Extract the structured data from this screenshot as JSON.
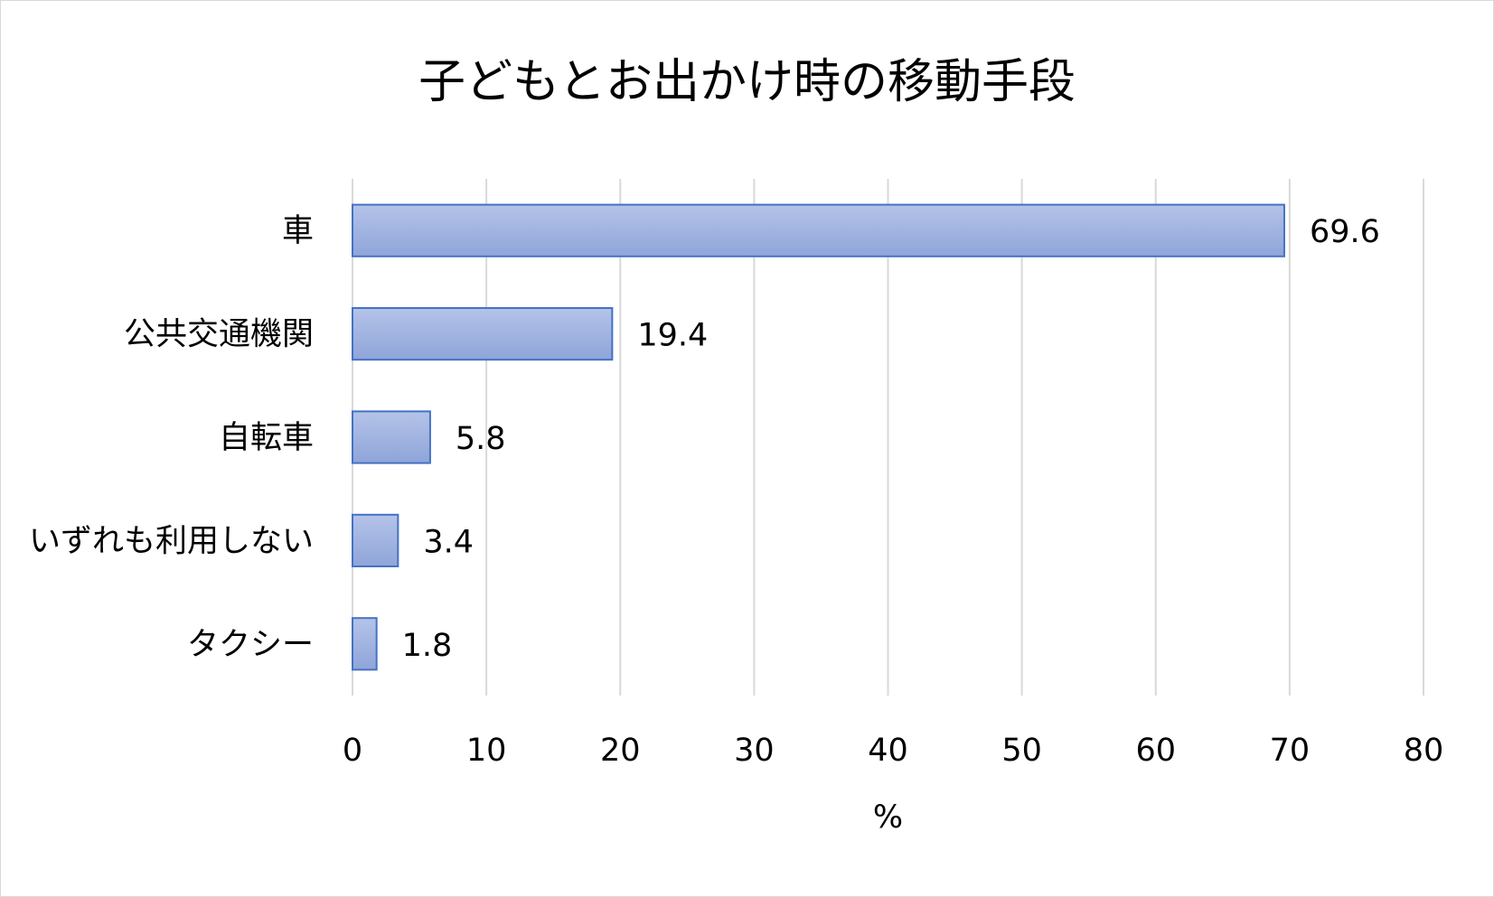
{
  "chart_data": {
    "type": "bar",
    "orientation": "horizontal",
    "title": "子どもとお出かけ時の移動手段",
    "xlabel": "%",
    "ylabel": "",
    "categories": [
      "車",
      "公共交通機関",
      "自転車",
      "いずれも利用しない",
      "タクシー"
    ],
    "values": [
      69.6,
      19.4,
      5.8,
      3.4,
      1.8
    ],
    "data_labels": [
      "69.6",
      "19.4",
      "5.8",
      "3.4",
      "1.8"
    ],
    "xlim": [
      0,
      80
    ],
    "x_ticks": [
      0,
      10,
      20,
      30,
      40,
      50,
      60,
      70,
      80
    ],
    "grid": "vertical",
    "legend": "none",
    "colors": {
      "bar_fill_top": "#b4c3e8",
      "bar_fill_bottom": "#8fa5d9",
      "bar_stroke": "#4472c4",
      "gridline": "#d9d9d9",
      "text": "#000000"
    }
  }
}
